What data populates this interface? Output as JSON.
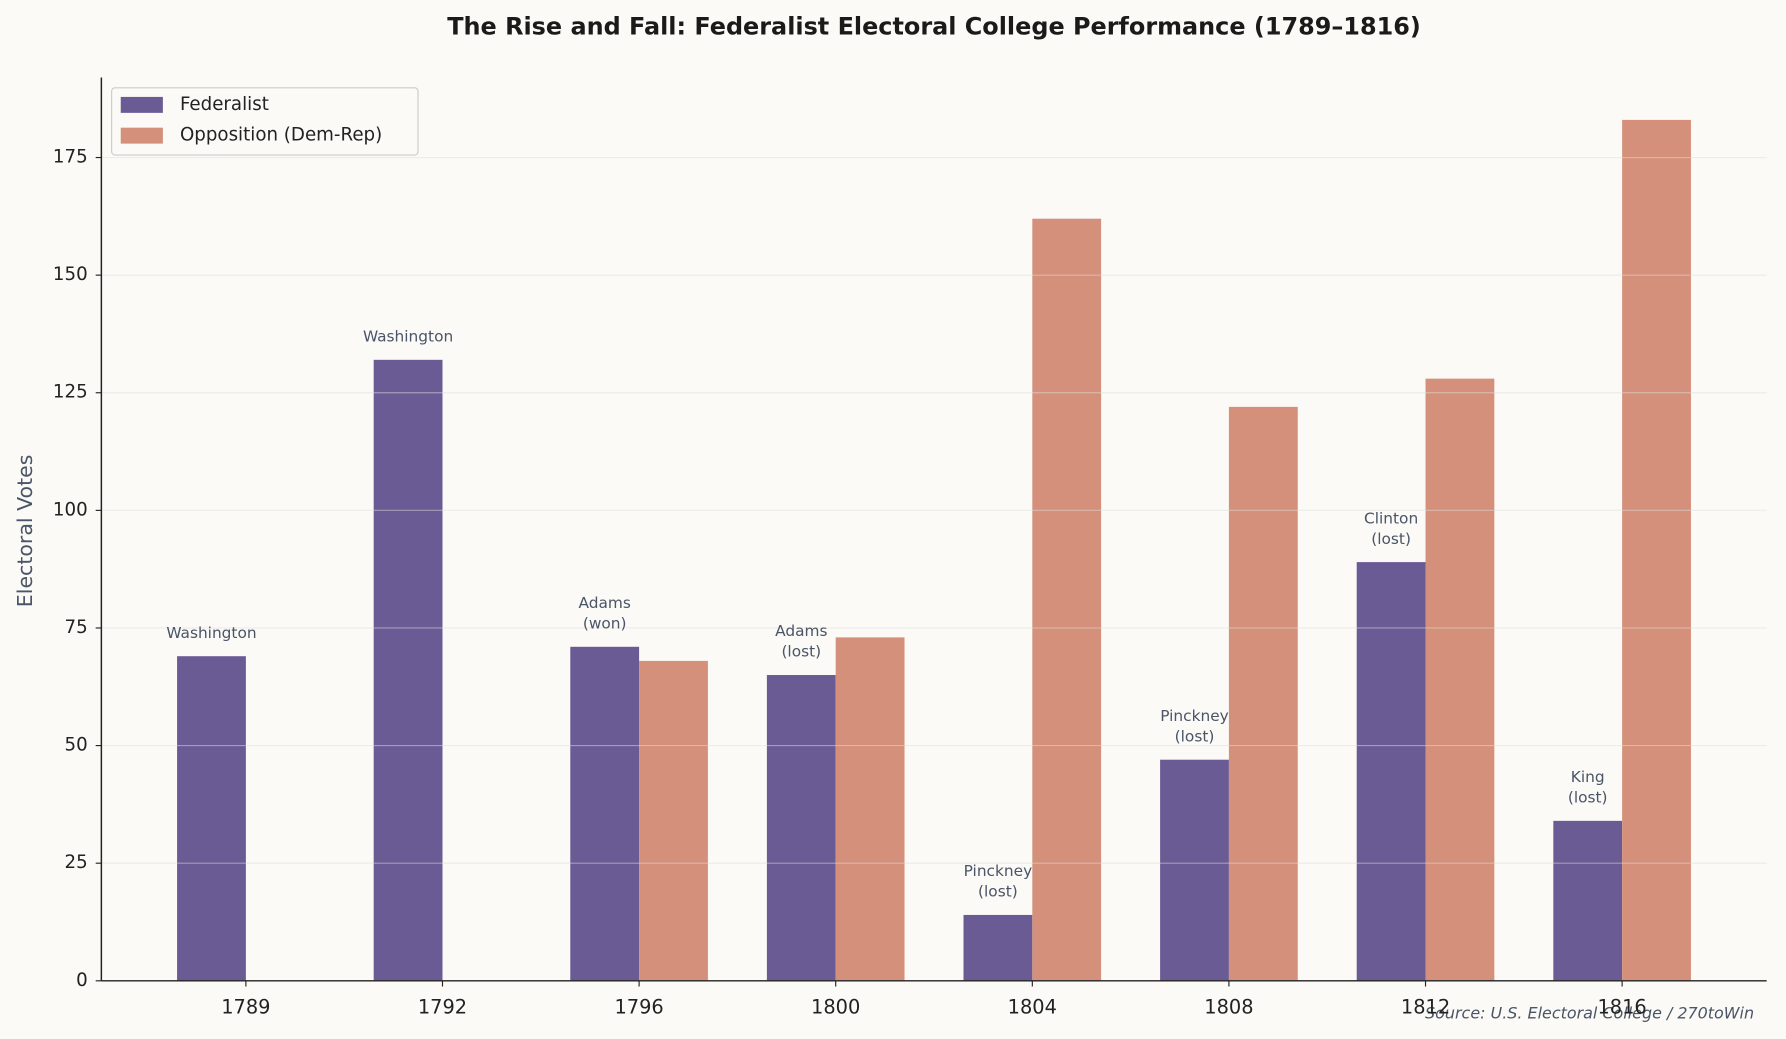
{
  "chart_data": {
    "type": "bar",
    "title": "The Rise and Fall: Federalist Electoral College Performance (1789–1816)",
    "y_label": "Electoral Votes",
    "source": "Source: U.S. Electoral College / 270toWin",
    "categories": [
      "1789",
      "1792",
      "1796",
      "1800",
      "1804",
      "1808",
      "1812",
      "1816"
    ],
    "series": [
      {
        "name": "Federalist",
        "color": "#6b5b95",
        "values": [
          69,
          132,
          71,
          65,
          14,
          47,
          89,
          34
        ]
      },
      {
        "name": "Opposition (Dem-Rep)",
        "color": "#d4907a",
        "values": [
          0,
          0,
          68,
          73,
          162,
          122,
          128,
          183
        ]
      }
    ],
    "annotations": [
      [
        "Washington"
      ],
      [
        "Washington"
      ],
      [
        "Adams",
        "(won)"
      ],
      [
        "Adams",
        "(lost)"
      ],
      [
        "Pinckney",
        "(lost)"
      ],
      [
        "Pinckney",
        "(lost)"
      ],
      [
        "Clinton",
        "(lost)"
      ],
      [
        "King",
        "(lost)"
      ]
    ],
    "ylim": [
      0,
      192
    ],
    "yticks": [
      0,
      25,
      50,
      75,
      100,
      125,
      150,
      175
    ],
    "grid": true,
    "legend": "upper left"
  }
}
